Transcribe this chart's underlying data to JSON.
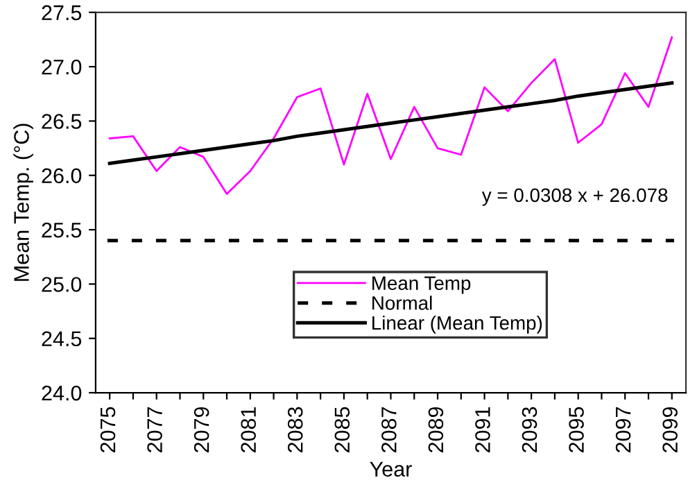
{
  "chart_data": {
    "type": "line",
    "xlabel": "Year",
    "ylabel": "Mean Temp. (°C)",
    "categories": [
      "2075",
      null,
      "2077",
      null,
      "2079",
      null,
      "2081",
      null,
      "2083",
      null,
      "2085",
      null,
      "2087",
      null,
      "2089",
      null,
      "2091",
      null,
      "2093",
      null,
      "2095",
      null,
      "2097",
      null,
      "2099"
    ],
    "series": [
      {
        "name": "Mean Temp",
        "color": "#ff00ff",
        "values": [
          26.34,
          26.36,
          26.04,
          26.26,
          26.17,
          25.83,
          26.04,
          26.34,
          26.72,
          26.8,
          26.1,
          26.75,
          26.15,
          26.63,
          26.25,
          26.19,
          26.81,
          26.59,
          26.85,
          27.07,
          26.3,
          26.47,
          26.94,
          26.63,
          27.27
        ]
      },
      {
        "name": "Linear (Mean Temp)",
        "color": "#000000",
        "values": [
          26.11,
          26.14,
          26.17,
          26.2,
          26.23,
          26.26,
          26.29,
          26.32,
          26.36,
          26.39,
          26.42,
          26.45,
          26.48,
          26.51,
          26.54,
          26.57,
          26.6,
          26.63,
          26.66,
          26.69,
          26.73,
          26.76,
          26.79,
          26.82,
          26.85
        ]
      }
    ],
    "ref_lines": [
      {
        "axis": "y",
        "value": 25.4,
        "label": "Normal",
        "color": "#000000",
        "line_style": "dashed"
      }
    ],
    "annotations": [
      "y = 0.0308 x + 26.078"
    ],
    "ylim": [
      24.0,
      27.5
    ],
    "yticks": [
      {
        "value": 24.0,
        "label": "24.0"
      },
      {
        "value": 24.5,
        "label": "24.5"
      },
      {
        "value": 25.0,
        "label": "25.0"
      },
      {
        "value": 25.5,
        "label": "25.5"
      },
      {
        "value": 26.0,
        "label": "26.0"
      },
      {
        "value": 26.5,
        "label": "26.5"
      },
      {
        "value": 27.0,
        "label": "27.0"
      },
      {
        "value": 27.5,
        "label": "27.5"
      }
    ],
    "grid": false,
    "legend": "bottom",
    "marker": "none"
  }
}
